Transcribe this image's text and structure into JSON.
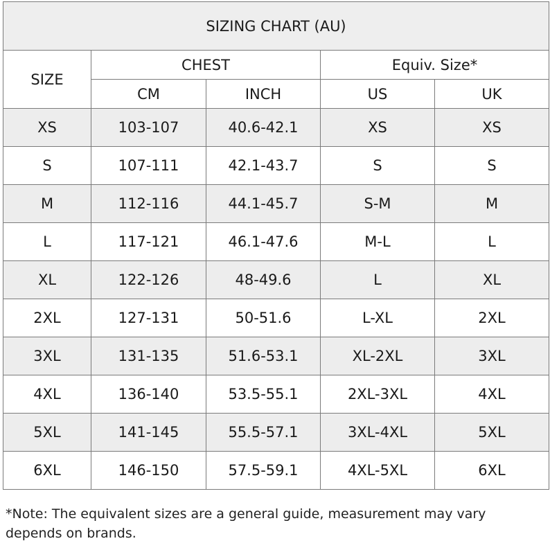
{
  "title": "SIZING CHART (AU)",
  "headers": {
    "size": "SIZE",
    "chest": "CHEST",
    "equiv": "Equiv. Size*",
    "cm": "CM",
    "inch": "INCH",
    "us": "US",
    "uk": "UK"
  },
  "rows": [
    {
      "size": "XS",
      "cm": "103-107",
      "inch": "40.6-42.1",
      "us": "XS",
      "uk": "XS"
    },
    {
      "size": "S",
      "cm": "107-111",
      "inch": "42.1-43.7",
      "us": "S",
      "uk": "S"
    },
    {
      "size": "M",
      "cm": "112-116",
      "inch": "44.1-45.7",
      "us": "S-M",
      "uk": "M"
    },
    {
      "size": "L",
      "cm": "117-121",
      "inch": "46.1-47.6",
      "us": "M-L",
      "uk": "L"
    },
    {
      "size": "XL",
      "cm": "122-126",
      "inch": "48-49.6",
      "us": "L",
      "uk": "XL"
    },
    {
      "size": "2XL",
      "cm": "127-131",
      "inch": "50-51.6",
      "us": "L-XL",
      "uk": "2XL"
    },
    {
      "size": "3XL",
      "cm": "131-135",
      "inch": "51.6-53.1",
      "us": "XL-2XL",
      "uk": "3XL"
    },
    {
      "size": "4XL",
      "cm": "136-140",
      "inch": "53.5-55.1",
      "us": "2XL-3XL",
      "uk": "4XL"
    },
    {
      "size": "5XL",
      "cm": "141-145",
      "inch": "55.5-57.1",
      "us": "3XL-4XL",
      "uk": "5XL"
    },
    {
      "size": "6XL",
      "cm": "146-150",
      "inch": "57.5-59.1",
      "us": "4XL-5XL",
      "uk": "6XL"
    }
  ],
  "note": "*Note: The equivalent sizes are a general guide, measurement may vary depends on brands.",
  "colors": {
    "shade": "#ededed",
    "title_bg": "#eeeeee",
    "border": "#7a7a7a"
  }
}
